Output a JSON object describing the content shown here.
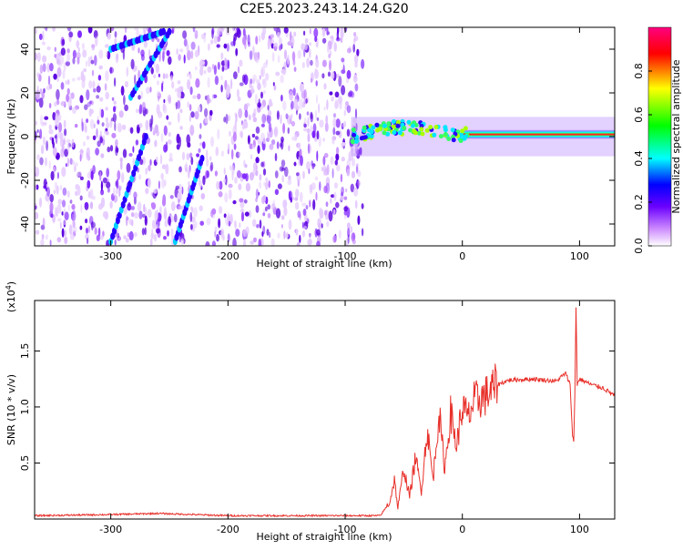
{
  "title": "C2E5.2023.243.14.24.G20",
  "chart_data": [
    {
      "type": "heatmap",
      "xlabel": "Height of straight line (km)",
      "ylabel": "Frequency (Hz)",
      "xlim": [
        -365,
        130
      ],
      "ylim": [
        -50,
        50
      ],
      "xticks": [
        -300,
        -200,
        -100,
        0,
        100
      ],
      "yticks": [
        -40,
        -20,
        0,
        20,
        40
      ],
      "noise_region_x": [
        -365,
        -85
      ],
      "signal_band": {
        "x_start": -95,
        "x_end": 130,
        "center_freq_hz": [
          [
            -95,
            0
          ],
          [
            -80,
            2
          ],
          [
            -60,
            4
          ],
          [
            -40,
            4
          ],
          [
            -20,
            2
          ],
          [
            0,
            1
          ],
          [
            50,
            1
          ],
          [
            100,
            1
          ],
          [
            130,
            1
          ]
        ]
      },
      "diagonal_tracks": [
        {
          "x": [
            -300,
            -270
          ],
          "y": [
            -48,
            0
          ]
        },
        {
          "x": [
            -300,
            -255
          ],
          "y": [
            40,
            48
          ]
        },
        {
          "x": [
            -245,
            -222
          ],
          "y": [
            -48,
            -10
          ]
        },
        {
          "x": [
            -283,
            -250
          ],
          "y": [
            18,
            48
          ]
        }
      ],
      "colorbar": {
        "label": "Normalized spectral amplitude",
        "range": [
          0.0,
          1.0
        ],
        "ticks": [
          "0.0",
          "0.2",
          "0.4",
          "0.6",
          "0.8"
        ],
        "colors": [
          "#ffffff",
          "#cc88ff",
          "#6a00ff",
          "#0000ff",
          "#00ffff",
          "#00ff00",
          "#ffff00",
          "#ff0000",
          "#ff0080"
        ]
      }
    },
    {
      "type": "line",
      "xlabel": "Height of straight line (km)",
      "ylabel": "SNR (10 * v/v)",
      "scale_label": "(x10^4)",
      "xlim": [
        -365,
        130
      ],
      "ylim": [
        0,
        1.95
      ],
      "xticks": [
        -300,
        -200,
        -100,
        0,
        100
      ],
      "yticks": [
        "0.5",
        "1.0",
        "1.5"
      ],
      "series": [
        {
          "color": "#e8302a",
          "points": [
            [
              -365,
              0.03
            ],
            [
              -300,
              0.04
            ],
            [
              -260,
              0.05
            ],
            [
              -200,
              0.03
            ],
            [
              -150,
              0.03
            ],
            [
              -100,
              0.03
            ],
            [
              -70,
              0.03
            ],
            [
              -62,
              0.15
            ],
            [
              -58,
              0.35
            ],
            [
              -55,
              0.1
            ],
            [
              -50,
              0.45
            ],
            [
              -45,
              0.2
            ],
            [
              -40,
              0.55
            ],
            [
              -35,
              0.25
            ],
            [
              -30,
              0.8
            ],
            [
              -25,
              0.35
            ],
            [
              -20,
              0.95
            ],
            [
              -15,
              0.45
            ],
            [
              -10,
              0.95
            ],
            [
              -5,
              0.65
            ],
            [
              0,
              1.0
            ],
            [
              5,
              0.9
            ],
            [
              10,
              1.05
            ],
            [
              20,
              1.1
            ],
            [
              30,
              1.2
            ],
            [
              40,
              1.24
            ],
            [
              60,
              1.25
            ],
            [
              80,
              1.23
            ],
            [
              88,
              1.3
            ],
            [
              92,
              1.2
            ],
            [
              94,
              0.75
            ],
            [
              95,
              0.68
            ],
            [
              96,
              1.1
            ],
            [
              97,
              1.9
            ],
            [
              98,
              1.2
            ],
            [
              100,
              1.25
            ],
            [
              110,
              1.2
            ],
            [
              120,
              1.17
            ],
            [
              130,
              1.1
            ]
          ]
        }
      ]
    }
  ]
}
